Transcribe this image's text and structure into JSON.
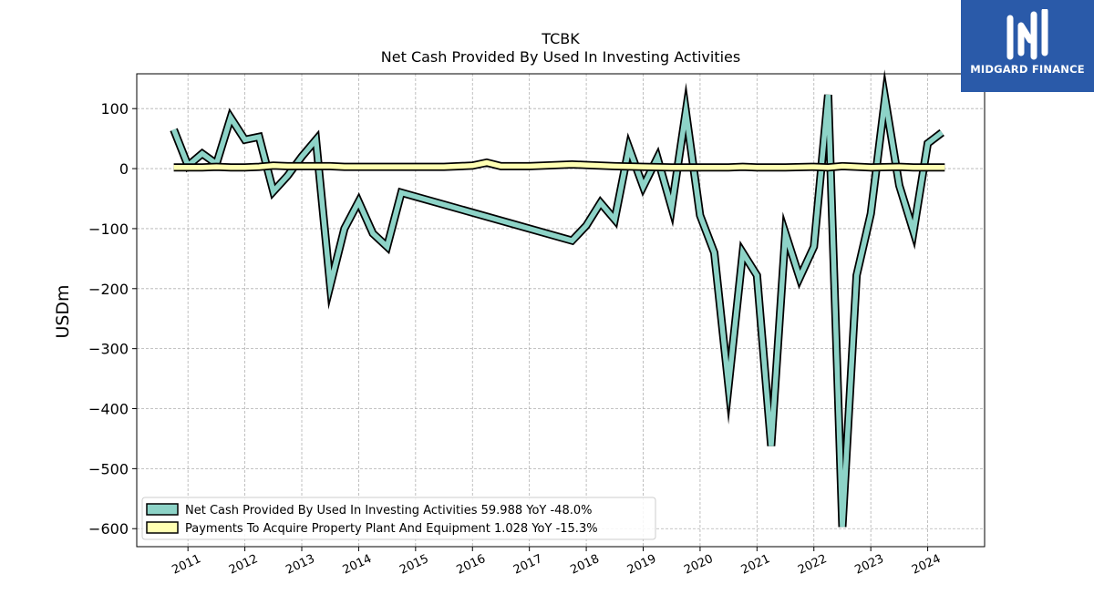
{
  "chart_data": {
    "type": "line",
    "title": "TCBK",
    "subtitle": "Net Cash Provided By Used In Investing Activities",
    "ylabel": "USDm",
    "ylim": [
      -630,
      158
    ],
    "xlim": [
      2010.1,
      2025.0
    ],
    "yticks": [
      100,
      0,
      -100,
      -200,
      -300,
      -400,
      -500,
      -600
    ],
    "ytick_labels": [
      "100",
      "0",
      "−100",
      "−200",
      "−300",
      "−400",
      "−500",
      "−600"
    ],
    "xticks": [
      2011,
      2012,
      2013,
      2014,
      2015,
      2016,
      2017,
      2018,
      2019,
      2020,
      2021,
      2022,
      2023,
      2024
    ],
    "xtick_labels": [
      "2011",
      "2012",
      "2013",
      "2014",
      "2015",
      "2016",
      "2017",
      "2018",
      "2019",
      "2020",
      "2021",
      "2022",
      "2023",
      "2024"
    ],
    "grid": true,
    "legend_position": "lower-left",
    "series": [
      {
        "name": "Net Cash Provided By Used In Investing Activities",
        "legend_label": "Net Cash Provided By Used In Investing Activities  59.988 YoY -48.0%",
        "color": "#8dd3c7",
        "points": [
          [
            2010.75,
            65
          ],
          [
            2011.0,
            5
          ],
          [
            2011.25,
            25
          ],
          [
            2011.5,
            8
          ],
          [
            2011.75,
            85
          ],
          [
            2012.0,
            48
          ],
          [
            2012.25,
            53
          ],
          [
            2012.5,
            -38
          ],
          [
            2012.75,
            -12
          ],
          [
            2013.0,
            20
          ],
          [
            2013.25,
            48
          ],
          [
            2013.5,
            -195
          ],
          [
            2013.75,
            -100
          ],
          [
            2014.0,
            -55
          ],
          [
            2014.25,
            -108
          ],
          [
            2014.5,
            -130
          ],
          [
            2014.75,
            -40
          ],
          [
            2017.75,
            -120
          ],
          [
            2018.0,
            -95
          ],
          [
            2018.25,
            -57
          ],
          [
            2018.5,
            -85
          ],
          [
            2018.75,
            35
          ],
          [
            2019.0,
            -30
          ],
          [
            2019.25,
            18
          ],
          [
            2019.5,
            -65
          ],
          [
            2019.75,
            95
          ],
          [
            2020.0,
            -78
          ],
          [
            2020.25,
            -140
          ],
          [
            2020.5,
            -362
          ],
          [
            2020.75,
            -140
          ],
          [
            2021.0,
            -178
          ],
          [
            2021.25,
            -462
          ],
          [
            2021.5,
            -108
          ],
          [
            2021.75,
            -182
          ],
          [
            2022.0,
            -130
          ],
          [
            2022.25,
            123
          ],
          [
            2022.5,
            -597
          ],
          [
            2022.75,
            -178
          ],
          [
            2023.0,
            -75
          ],
          [
            2023.25,
            117
          ],
          [
            2023.5,
            -28
          ],
          [
            2023.75,
            -105
          ],
          [
            2024.0,
            42
          ],
          [
            2024.25,
            60
          ]
        ]
      },
      {
        "name": "Payments To Acquire Property Plant And Equipment",
        "legend_label": "Payments To Acquire Property Plant And Equipment  1.028 YoY -15.3%",
        "color": "#ffffb3",
        "points": [
          [
            2010.75,
            2
          ],
          [
            2011.0,
            2
          ],
          [
            2011.25,
            2
          ],
          [
            2011.5,
            3
          ],
          [
            2011.75,
            2
          ],
          [
            2012.0,
            2
          ],
          [
            2012.25,
            3
          ],
          [
            2012.5,
            5
          ],
          [
            2012.75,
            4
          ],
          [
            2013.0,
            4
          ],
          [
            2013.25,
            4
          ],
          [
            2013.5,
            4
          ],
          [
            2013.75,
            3
          ],
          [
            2014.0,
            3
          ],
          [
            2014.25,
            3
          ],
          [
            2014.5,
            3
          ],
          [
            2014.75,
            3
          ],
          [
            2015.0,
            3
          ],
          [
            2015.5,
            3
          ],
          [
            2016.0,
            5
          ],
          [
            2016.25,
            10
          ],
          [
            2016.5,
            4
          ],
          [
            2017.0,
            4
          ],
          [
            2017.5,
            6
          ],
          [
            2017.75,
            7
          ],
          [
            2018.0,
            6
          ],
          [
            2018.5,
            4
          ],
          [
            2019.0,
            3
          ],
          [
            2019.5,
            2
          ],
          [
            2020.0,
            2
          ],
          [
            2020.5,
            2
          ],
          [
            2020.75,
            3
          ],
          [
            2021.0,
            2
          ],
          [
            2021.5,
            2
          ],
          [
            2022.0,
            3
          ],
          [
            2022.25,
            2
          ],
          [
            2022.5,
            4
          ],
          [
            2023.0,
            2
          ],
          [
            2023.5,
            3
          ],
          [
            2023.75,
            2
          ],
          [
            2024.0,
            2
          ],
          [
            2024.3,
            2
          ]
        ]
      }
    ]
  },
  "logo": {
    "text": "MIDGARD FINANCE",
    "background": "#2a5aa9"
  }
}
